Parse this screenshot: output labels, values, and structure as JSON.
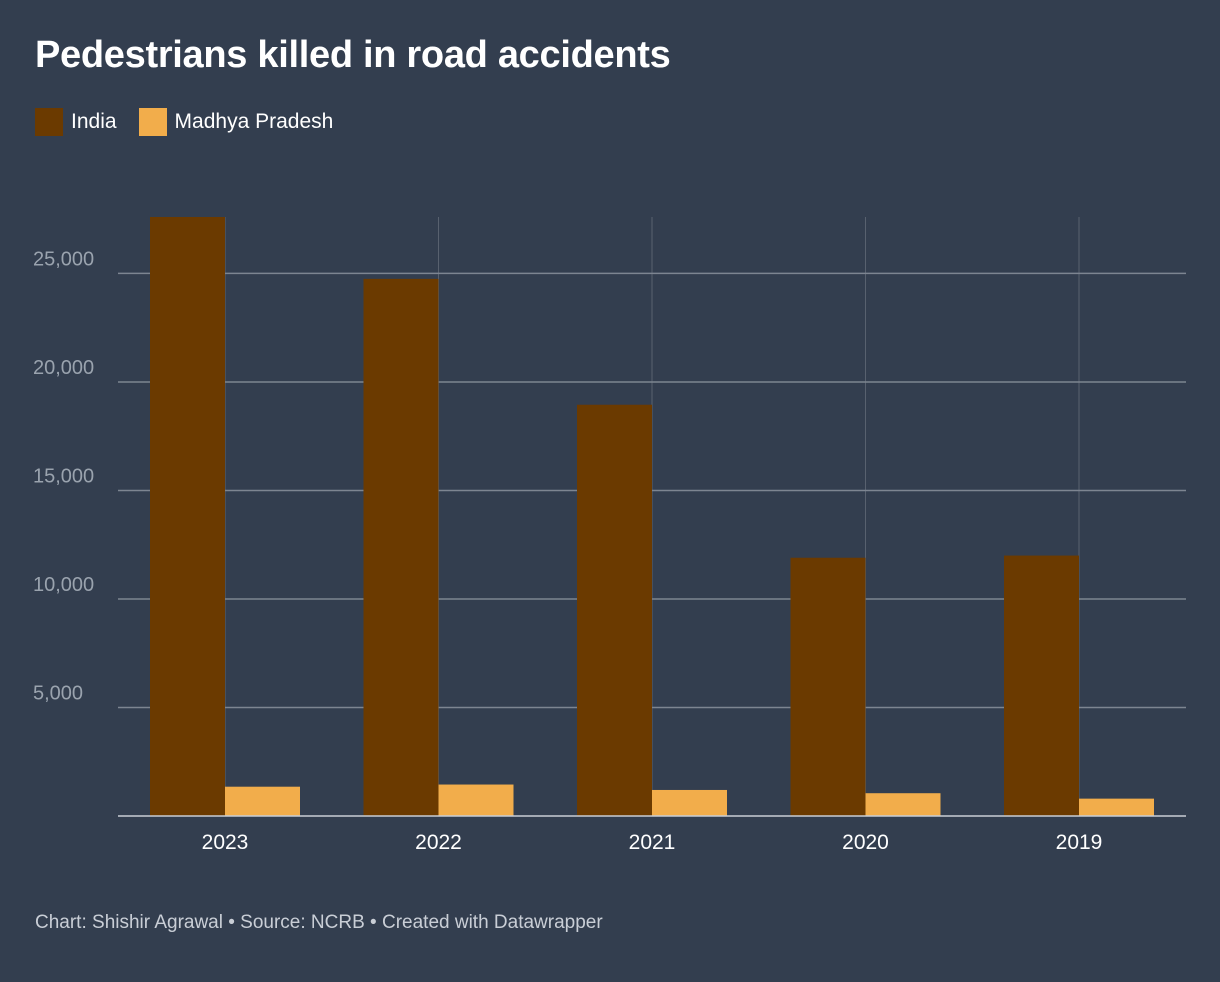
{
  "title": "Pedestrians killed in road accidents",
  "footer": "Chart: Shishir Agrawal • Source: NCRB • Created with Datawrapper",
  "colors": {
    "background": "#333e4f",
    "india": "#6b3a00",
    "madhya_pradesh": "#f2ad4b"
  },
  "chart_data": {
    "type": "bar",
    "title": "Pedestrians killed in road accidents",
    "categories": [
      "2023",
      "2022",
      "2021",
      "2020",
      "2019"
    ],
    "series": [
      {
        "name": "India",
        "values": [
          27600,
          24750,
          18950,
          11900,
          12000
        ],
        "color": "#6b3a00"
      },
      {
        "name": "Madhya Pradesh",
        "values": [
          1350,
          1450,
          1200,
          1050,
          800
        ],
        "color": "#f2ad4b"
      }
    ],
    "yticks": [
      "5,000",
      "10,000",
      "15,000",
      "20,000",
      "25,000"
    ],
    "ytick_values": [
      5000,
      10000,
      15000,
      20000,
      25000
    ],
    "ylim": [
      0,
      27600
    ],
    "xlabel": "",
    "ylabel": "",
    "legend_position": "top-left",
    "grid": true
  }
}
